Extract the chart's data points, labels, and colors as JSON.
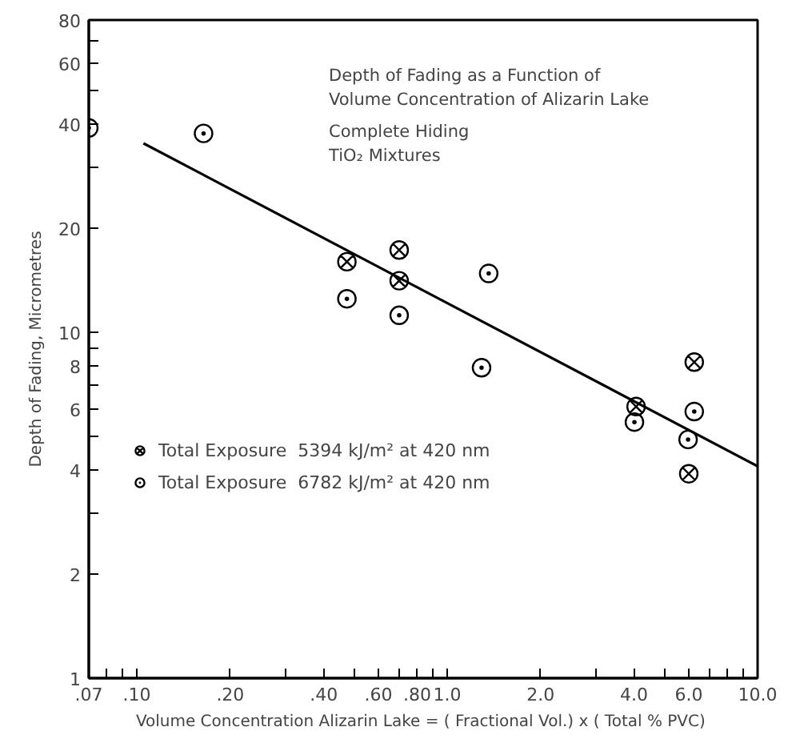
{
  "chart_data": {
    "type": "scatter",
    "xlabel": "Volume Concentration Alizarin Lake =  ( Fractional Vol.) x ( Total % PVC)",
    "ylabel": "Depth of Fading, Micrometres",
    "annotations": [
      "Depth of Fading as a Function of",
      "Volume Concentration of Alizarin Lake",
      "Complete Hiding",
      "TiO₂ Mixtures"
    ],
    "log": "xy",
    "grid": false,
    "legend": "left",
    "xlim": [
      0.07,
      10
    ],
    "ylim": [
      1,
      80
    ],
    "xticks": [
      {
        "value": 0.07,
        "label": ".07"
      },
      {
        "value": 0.08,
        "label": null
      },
      {
        "value": 0.09,
        "label": null
      },
      {
        "value": 0.1,
        "label": ".10"
      },
      {
        "value": 0.2,
        "label": ".20"
      },
      {
        "value": 0.3,
        "label": null
      },
      {
        "value": 0.4,
        "label": ".40"
      },
      {
        "value": 0.5,
        "label": null
      },
      {
        "value": 0.6,
        "label": ".60"
      },
      {
        "value": 0.7,
        "label": null
      },
      {
        "value": 0.8,
        "label": ".80"
      },
      {
        "value": 0.9,
        "label": null
      },
      {
        "value": 1,
        "label": "1.0"
      },
      {
        "value": 2,
        "label": "2.0"
      },
      {
        "value": 3,
        "label": null
      },
      {
        "value": 4,
        "label": "4.0"
      },
      {
        "value": 5,
        "label": null
      },
      {
        "value": 6,
        "label": "6.0"
      },
      {
        "value": 7,
        "label": null
      },
      {
        "value": 8,
        "label": null
      },
      {
        "value": 9,
        "label": null
      },
      {
        "value": 10,
        "label": "10.0"
      }
    ],
    "yticks": [
      1,
      2,
      {
        "value": 3,
        "label": null
      },
      4,
      {
        "value": 5,
        "label": null
      },
      6,
      {
        "value": 7,
        "label": null
      },
      8,
      {
        "value": 9,
        "label": null
      },
      10,
      20,
      {
        "value": 30,
        "label": null
      },
      40,
      {
        "value": 50,
        "label": null
      },
      60,
      {
        "value": 70,
        "label": null
      },
      80
    ],
    "series": [
      {
        "name": "Total Exposure  5394 kJ/m² at 420 nm",
        "color": "#000000",
        "marker": "cross",
        "x": [
          0.475,
          0.7,
          0.7,
          4.06,
          6.25,
          6.0
        ],
        "values": [
          16.0,
          17.3,
          14.1,
          6.1,
          8.2,
          3.9
        ]
      },
      {
        "name": "Total Exposure  6782 kJ/m² at 420 nm",
        "color": "#000000",
        "marker": "circle",
        "x": [
          0.07,
          0.164,
          0.475,
          0.7,
          1.36,
          1.29,
          4.01,
          6.25,
          5.97
        ],
        "values": [
          39,
          37.6,
          12.5,
          11.2,
          14.8,
          7.9,
          5.5,
          5.9,
          4.9
        ]
      },
      {
        "type": "line",
        "color": "#000000",
        "marker": "none",
        "line_style": "solid",
        "x": [
          0.105,
          10
        ],
        "values": [
          35.2,
          4.1
        ]
      }
    ]
  }
}
